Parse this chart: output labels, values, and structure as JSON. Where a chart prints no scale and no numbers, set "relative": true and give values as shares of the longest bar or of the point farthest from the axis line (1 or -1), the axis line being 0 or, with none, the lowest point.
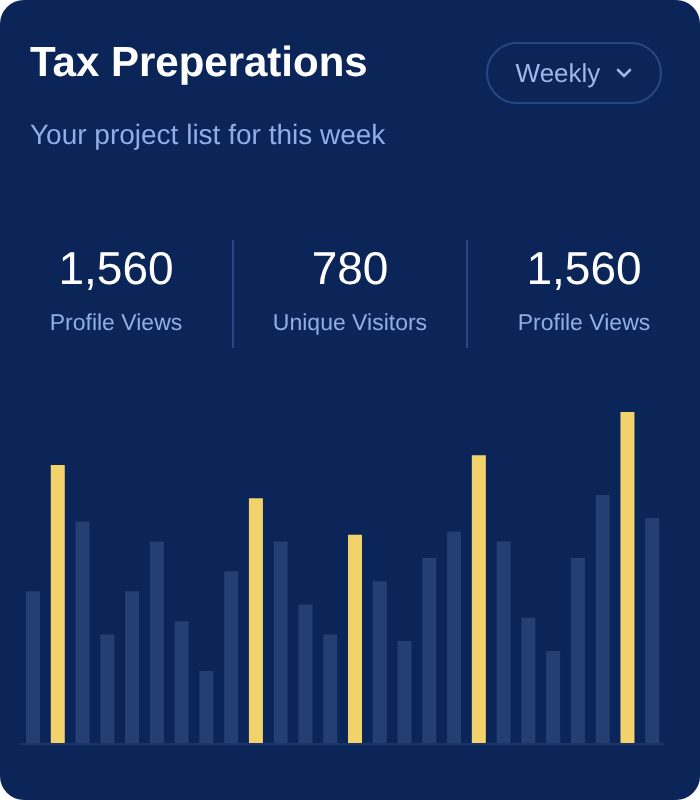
{
  "chart_data": {
    "type": "bar",
    "title": "Tax Preperations",
    "subtitle": "Your project list for this week",
    "annotations": [
      "Weekly",
      "1,560",
      "Profile Views",
      "780",
      "Unique Visitors",
      "1,560",
      "Profile Views"
    ],
    "relative": true,
    "categories": [
      null,
      null,
      null,
      null,
      null,
      null,
      null,
      null,
      null,
      null,
      null,
      null,
      null,
      null,
      null,
      null,
      null,
      null,
      null,
      null,
      null,
      null,
      null,
      null,
      null,
      null
    ],
    "values": [
      0.46,
      0.84,
      0.67,
      0.33,
      0.46,
      0.61,
      0.37,
      0.22,
      0.52,
      0.74,
      0.61,
      0.42,
      0.33,
      0.63,
      0.49,
      0.31,
      0.56,
      0.64,
      0.87,
      0.61,
      0.38,
      0.28,
      0.56,
      0.75,
      1,
      0.68
    ],
    "colors": [
      "#243f74",
      "#f2d26a",
      "#243f74",
      "#243f74",
      "#243f74",
      "#243f74",
      "#243f74",
      "#243f74",
      "#243f74",
      "#f2d26a",
      "#243f74",
      "#243f74",
      "#243f74",
      "#f2d26a",
      "#243f74",
      "#243f74",
      "#243f74",
      "#243f74",
      "#f2d26a",
      "#243f74",
      "#243f74",
      "#243f74",
      "#243f74",
      "#243f74",
      "#f2d26a",
      "#243f74"
    ]
  }
}
